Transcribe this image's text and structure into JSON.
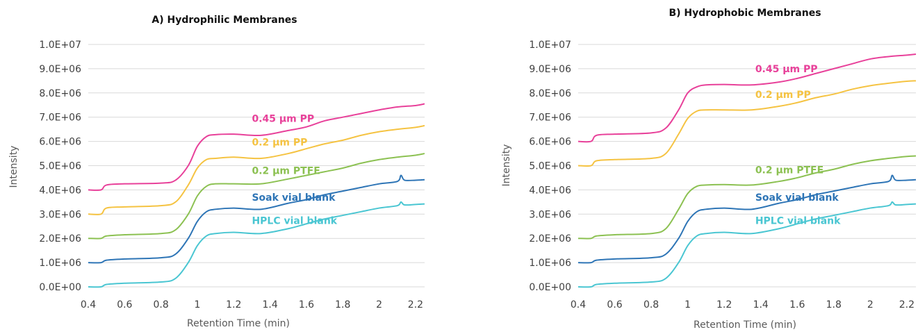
{
  "colors": {
    "pp045": "#e8419a",
    "pp02": "#f5c342",
    "ptfe02": "#8cc152",
    "soak": "#2e75b6",
    "hplc": "#4ac6d2"
  },
  "chart_data": [
    {
      "type": "line",
      "title": "A) Hydrophilic Membranes",
      "xlabel": "Retention Time (min)",
      "ylabel": "Intensity",
      "xlim": [
        0.4,
        2.25
      ],
      "ylim": [
        0,
        10000000
      ],
      "xticks": [
        "0.4",
        "0.6",
        "0.8",
        "1",
        "1.2",
        "1.4",
        "1.6",
        "1.8",
        "2",
        "2.2"
      ],
      "yticks": [
        "0.0E+00",
        "1.0E+06",
        "2.0E+06",
        "3.0E+06",
        "4.0E+06",
        "5.0E+06",
        "6.0E+06",
        "7.0E+06",
        "8.0E+06",
        "9.0E+06",
        "1.0E+07"
      ],
      "grid": true,
      "series": [
        {
          "name": "0.45 µm PP",
          "color_key": "pp045",
          "x": [
            0.4,
            0.47,
            0.5,
            0.6,
            0.8,
            0.88,
            0.95,
            1.0,
            1.05,
            1.1,
            1.2,
            1.35,
            1.5,
            1.6,
            1.7,
            1.8,
            1.9,
            2.0,
            2.1,
            2.2,
            2.25
          ],
          "values": [
            4000000,
            4000000,
            4200000,
            4250000,
            4280000,
            4400000,
            5000000,
            5800000,
            6200000,
            6280000,
            6300000,
            6250000,
            6450000,
            6600000,
            6850000,
            7000000,
            7150000,
            7300000,
            7420000,
            7480000,
            7550000
          ]
        },
        {
          "name": "0.2 µm PP",
          "color_key": "pp02",
          "x": [
            0.4,
            0.47,
            0.5,
            0.6,
            0.8,
            0.88,
            0.95,
            1.0,
            1.05,
            1.1,
            1.2,
            1.35,
            1.5,
            1.6,
            1.7,
            1.8,
            1.9,
            2.0,
            2.1,
            2.2,
            2.25
          ],
          "values": [
            3000000,
            3000000,
            3250000,
            3300000,
            3350000,
            3500000,
            4200000,
            4900000,
            5250000,
            5300000,
            5350000,
            5300000,
            5500000,
            5700000,
            5900000,
            6050000,
            6250000,
            6400000,
            6500000,
            6580000,
            6650000
          ]
        },
        {
          "name": "0.2 µm PTFE",
          "color_key": "ptfe02",
          "x": [
            0.4,
            0.47,
            0.5,
            0.6,
            0.8,
            0.88,
            0.95,
            1.0,
            1.05,
            1.1,
            1.2,
            1.35,
            1.5,
            1.6,
            1.7,
            1.8,
            1.9,
            2.0,
            2.1,
            2.2,
            2.25
          ],
          "values": [
            2000000,
            2000000,
            2100000,
            2150000,
            2200000,
            2350000,
            3000000,
            3750000,
            4150000,
            4250000,
            4250000,
            4250000,
            4450000,
            4600000,
            4750000,
            4900000,
            5100000,
            5250000,
            5350000,
            5430000,
            5500000
          ]
        },
        {
          "name": "Soak vial blank",
          "color_key": "soak",
          "x": [
            0.4,
            0.47,
            0.5,
            0.6,
            0.8,
            0.88,
            0.95,
            1.0,
            1.05,
            1.1,
            1.2,
            1.35,
            1.5,
            1.6,
            1.7,
            1.8,
            1.9,
            2.0,
            2.1,
            2.12,
            2.14,
            2.2,
            2.25
          ],
          "values": [
            1000000,
            1000000,
            1100000,
            1150000,
            1200000,
            1350000,
            2000000,
            2700000,
            3100000,
            3200000,
            3250000,
            3200000,
            3450000,
            3600000,
            3800000,
            3950000,
            4100000,
            4250000,
            4350000,
            4600000,
            4400000,
            4400000,
            4420000
          ]
        },
        {
          "name": "HPLC vial blank",
          "color_key": "hplc",
          "x": [
            0.4,
            0.47,
            0.5,
            0.6,
            0.8,
            0.88,
            0.95,
            1.0,
            1.05,
            1.1,
            1.2,
            1.35,
            1.5,
            1.6,
            1.7,
            1.8,
            1.9,
            2.0,
            2.1,
            2.12,
            2.14,
            2.2,
            2.25
          ],
          "values": [
            0,
            0,
            100000,
            150000,
            200000,
            350000,
            1000000,
            1700000,
            2100000,
            2200000,
            2250000,
            2200000,
            2400000,
            2600000,
            2800000,
            2950000,
            3100000,
            3250000,
            3350000,
            3500000,
            3380000,
            3400000,
            3420000
          ]
        }
      ],
      "annotations": [
        {
          "text": "0.45 µm PP",
          "color_key": "pp045",
          "x": 1.3,
          "y": 6800000
        },
        {
          "text": "0.2 µm PP",
          "color_key": "pp02",
          "x": 1.3,
          "y": 5830000
        },
        {
          "text": "0.2 µm PTFE",
          "color_key": "ptfe02",
          "x": 1.3,
          "y": 4650000
        },
        {
          "text": "Soak vial blank",
          "color_key": "soak",
          "x": 1.3,
          "y": 3550000
        },
        {
          "text": "HPLC vial blank",
          "color_key": "hplc",
          "x": 1.3,
          "y": 2600000
        }
      ]
    },
    {
      "type": "line",
      "title": "B) Hydrophobic Membranes",
      "xlabel": "Retention Time (min)",
      "ylabel": "Intensity",
      "xlim": [
        0.4,
        2.25
      ],
      "ylim": [
        0,
        10000000
      ],
      "xticks": [
        "0.4",
        "0.6",
        "0.8",
        "1",
        "1.2",
        "1.4",
        "1.6",
        "1.8",
        "2",
        "2.2"
      ],
      "yticks": [
        "0.0E+00",
        "1.0E+06",
        "2.0E+06",
        "3.0E+06",
        "4.0E+06",
        "5.0E+06",
        "6.0E+06",
        "7.0E+06",
        "8.0E+06",
        "9.0E+06",
        "1.0E+07"
      ],
      "grid": true,
      "series": [
        {
          "name": "0.45 µm PP",
          "color_key": "pp045",
          "x": [
            0.4,
            0.47,
            0.5,
            0.6,
            0.8,
            0.88,
            0.95,
            1.0,
            1.05,
            1.1,
            1.2,
            1.35,
            1.5,
            1.6,
            1.7,
            1.8,
            1.9,
            2.0,
            2.1,
            2.2,
            2.25
          ],
          "values": [
            6000000,
            6000000,
            6250000,
            6300000,
            6350000,
            6550000,
            7300000,
            8000000,
            8250000,
            8330000,
            8350000,
            8330000,
            8450000,
            8600000,
            8800000,
            9000000,
            9200000,
            9400000,
            9500000,
            9560000,
            9600000
          ]
        },
        {
          "name": "0.2 µm PP",
          "color_key": "pp02",
          "x": [
            0.4,
            0.47,
            0.5,
            0.6,
            0.8,
            0.88,
            0.95,
            1.0,
            1.05,
            1.1,
            1.2,
            1.35,
            1.5,
            1.6,
            1.7,
            1.8,
            1.9,
            2.0,
            2.1,
            2.2,
            2.25
          ],
          "values": [
            5000000,
            5000000,
            5200000,
            5250000,
            5300000,
            5500000,
            6300000,
            6950000,
            7250000,
            7300000,
            7300000,
            7300000,
            7450000,
            7600000,
            7800000,
            7950000,
            8150000,
            8300000,
            8400000,
            8480000,
            8500000
          ]
        },
        {
          "name": "0.2 µm PTFE",
          "color_key": "ptfe02",
          "x": [
            0.4,
            0.47,
            0.5,
            0.6,
            0.8,
            0.88,
            0.95,
            1.0,
            1.05,
            1.1,
            1.2,
            1.35,
            1.5,
            1.6,
            1.7,
            1.8,
            1.9,
            2.0,
            2.1,
            2.2,
            2.25
          ],
          "values": [
            2000000,
            2000000,
            2100000,
            2150000,
            2200000,
            2400000,
            3200000,
            3850000,
            4150000,
            4200000,
            4220000,
            4200000,
            4350000,
            4500000,
            4700000,
            4850000,
            5050000,
            5200000,
            5300000,
            5380000,
            5400000
          ]
        },
        {
          "name": "Soak vial blank",
          "color_key": "soak",
          "x": [
            0.4,
            0.47,
            0.5,
            0.6,
            0.8,
            0.88,
            0.95,
            1.0,
            1.05,
            1.1,
            1.2,
            1.35,
            1.5,
            1.6,
            1.7,
            1.8,
            1.9,
            2.0,
            2.1,
            2.12,
            2.14,
            2.2,
            2.25
          ],
          "values": [
            1000000,
            1000000,
            1100000,
            1150000,
            1200000,
            1350000,
            2000000,
            2700000,
            3100000,
            3200000,
            3250000,
            3200000,
            3450000,
            3600000,
            3800000,
            3950000,
            4100000,
            4250000,
            4350000,
            4600000,
            4400000,
            4400000,
            4420000
          ]
        },
        {
          "name": "HPLC vial blank",
          "color_key": "hplc",
          "x": [
            0.4,
            0.47,
            0.5,
            0.6,
            0.8,
            0.88,
            0.95,
            1.0,
            1.05,
            1.1,
            1.2,
            1.35,
            1.5,
            1.6,
            1.7,
            1.8,
            1.9,
            2.0,
            2.1,
            2.12,
            2.14,
            2.2,
            2.25
          ],
          "values": [
            0,
            0,
            100000,
            150000,
            200000,
            350000,
            1000000,
            1700000,
            2100000,
            2200000,
            2250000,
            2200000,
            2400000,
            2600000,
            2800000,
            2950000,
            3100000,
            3250000,
            3350000,
            3500000,
            3380000,
            3400000,
            3420000
          ]
        }
      ],
      "annotations": [
        {
          "text": "0.45 µm PP",
          "color_key": "pp045",
          "x": 1.37,
          "y": 8850000
        },
        {
          "text": "0.2 µm PP",
          "color_key": "pp02",
          "x": 1.37,
          "y": 7800000
        },
        {
          "text": "0.2 µm PTFE",
          "color_key": "ptfe02",
          "x": 1.37,
          "y": 4680000
        },
        {
          "text": "Soak vial blank",
          "color_key": "soak",
          "x": 1.37,
          "y": 3550000
        },
        {
          "text": "HPLC vial blank",
          "color_key": "hplc",
          "x": 1.37,
          "y": 2600000
        }
      ]
    }
  ]
}
